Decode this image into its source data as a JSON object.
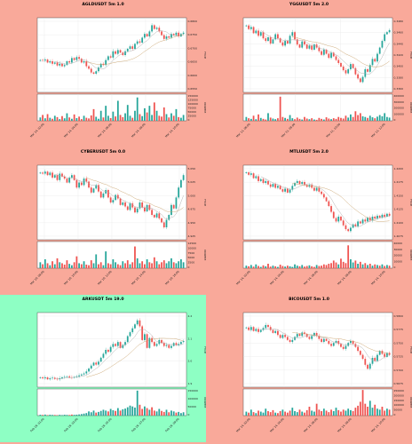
{
  "colors": {
    "background_default": "#f9a99a",
    "background_highlight": "#8effc4",
    "up": "#26a69a",
    "down": "#ef5350",
    "ma_fast": "#a9a9a9",
    "ma_slow": "#c8a26b",
    "plot_bg": "#ffffff"
  },
  "chart_data": [
    {
      "type": "candlestick",
      "title": "AGLDUSDT 5m 1.0",
      "ylabel": "Price",
      "volume_label": "Volume",
      "highlight": false,
      "price_ticks": [
        "0.6800",
        "0.6750",
        "0.6700",
        "0.6650",
        "0.6600",
        "0.6550"
      ],
      "ylim": [
        0.652,
        0.682
      ],
      "volume_ticks": [
        "150000",
        "125000",
        "100000",
        "75000",
        "50000",
        "25000",
        "0"
      ],
      "volume_max": 160000,
      "x_ticks": [
        "Mar 14, 02:00",
        "Mar 14, 04:00",
        "Mar 14, 06:00",
        "Mar 14, 08:00",
        "Mar 14, 10:00"
      ],
      "price_path": [
        0.665,
        0.6648,
        0.6652,
        0.664,
        0.6645,
        0.6635,
        0.664,
        0.6628,
        0.6635,
        0.6625,
        0.663,
        0.6645,
        0.664,
        0.6658,
        0.665,
        0.6662,
        0.6655,
        0.664,
        0.6645,
        0.6625,
        0.6615,
        0.66,
        0.6595,
        0.6605,
        0.662,
        0.6635,
        0.663,
        0.665,
        0.6665,
        0.666,
        0.6685,
        0.6675,
        0.669,
        0.668,
        0.667,
        0.6685,
        0.6695,
        0.6705,
        0.6695,
        0.6715,
        0.6725,
        0.672,
        0.674,
        0.6755,
        0.6745,
        0.6765,
        0.679,
        0.6775,
        0.678,
        0.6765,
        0.675,
        0.6735,
        0.6745,
        0.674,
        0.6755,
        0.675,
        0.676,
        0.6745,
        0.6755,
        0.676
      ],
      "volume": [
        20000,
        35000,
        15000,
        40000,
        18000,
        12000,
        30000,
        22000,
        10000,
        28000,
        15000,
        45000,
        20000,
        12000,
        38000,
        16000,
        25000,
        10000,
        30000,
        18000,
        14000,
        32000,
        70000,
        24000,
        12000,
        60000,
        20000,
        90000,
        30000,
        16000,
        55000,
        26000,
        120000,
        35000,
        22000,
        45000,
        95000,
        30000,
        18000,
        60000,
        140000,
        40000,
        28000,
        75000,
        50000,
        90000,
        35000,
        110000,
        60000,
        30000,
        25000,
        80000,
        40000,
        20000,
        45000,
        30000,
        70000,
        22000,
        18000,
        35000
      ]
    },
    {
      "type": "candlestick",
      "title": "YGGUSDT 5m 2.0",
      "ylabel": "Price",
      "volume_label": "Volume",
      "highlight": false,
      "price_ticks": [
        "0.3480",
        "0.3460",
        "0.3440",
        "0.3420",
        "0.3400",
        "0.3380",
        "0.3360"
      ],
      "ylim": [
        0.3345,
        0.349
      ],
      "volume_ticks": [
        "400000",
        "300000",
        "200000",
        "100000",
        "0"
      ],
      "volume_max": 420000,
      "x_ticks": [
        "Mar 11, 06:00",
        "Mar 11, 08:00",
        "Mar 11, 10:00",
        "Mar 11, 12:00"
      ],
      "price_path": [
        0.3475,
        0.3468,
        0.3472,
        0.346,
        0.3465,
        0.3455,
        0.3462,
        0.345,
        0.3445,
        0.3452,
        0.344,
        0.3448,
        0.3458,
        0.345,
        0.3442,
        0.3436,
        0.3445,
        0.344,
        0.3455,
        0.3462,
        0.3448,
        0.3438,
        0.3432,
        0.3444,
        0.3438,
        0.343,
        0.3436,
        0.3428,
        0.3438,
        0.3432,
        0.3425,
        0.3418,
        0.3428,
        0.342,
        0.3412,
        0.3422,
        0.3415,
        0.3408,
        0.3402,
        0.3395,
        0.3388,
        0.3382,
        0.339,
        0.34,
        0.3392,
        0.338,
        0.3372,
        0.3365,
        0.3375,
        0.339,
        0.3385,
        0.3398,
        0.341,
        0.3405,
        0.342,
        0.3432,
        0.3445,
        0.3458,
        0.3462,
        0.3466
      ],
      "volume": [
        60000,
        40000,
        30000,
        80000,
        25000,
        100000,
        45000,
        30000,
        20000,
        120000,
        50000,
        35000,
        25000,
        40000,
        380000,
        60000,
        45000,
        30000,
        90000,
        40000,
        25000,
        50000,
        30000,
        20000,
        60000,
        35000,
        25000,
        40000,
        20000,
        15000,
        45000,
        30000,
        20000,
        55000,
        35000,
        25000,
        40000,
        30000,
        60000,
        45000,
        35000,
        80000,
        50000,
        100000,
        60000,
        150000,
        90000,
        120000,
        70000,
        60000,
        45000,
        80000,
        55000,
        40000,
        65000,
        90000,
        70000,
        120000,
        60000,
        50000
      ]
    },
    {
      "type": "candlestick",
      "title": "CYBERUSDT 5m 0.0",
      "ylabel": "Price",
      "volume_label": "Volume",
      "highlight": false,
      "price_ticks": [
        "5.050",
        "5.025",
        "5.000",
        "4.975",
        "4.950",
        "4.925"
      ],
      "ylim": [
        4.915,
        5.065
      ],
      "volume_ticks": [
        "12500",
        "10000",
        "7500",
        "5000",
        "2500",
        "0"
      ],
      "volume_max": 13500,
      "x_ticks": [
        "Mar 10, 08:00",
        "Mar 10, 10:00",
        "Mar 10, 12:00",
        "Mar 10, 14:00",
        "Mar 10, 16:00"
      ],
      "price_path": [
        5.05,
        5.048,
        5.052,
        5.045,
        5.05,
        5.04,
        5.045,
        5.035,
        5.048,
        5.042,
        5.038,
        5.03,
        5.04,
        5.045,
        5.035,
        5.02,
        5.03,
        5.025,
        5.038,
        5.032,
        5.02,
        5.01,
        5.018,
        5.025,
        5.012,
        5.0,
        5.008,
        5.015,
        5.0,
        4.99,
        4.995,
        5.005,
        4.998,
        4.985,
        4.99,
        4.982,
        4.975,
        4.988,
        4.98,
        4.97,
        4.978,
        4.99,
        4.98,
        4.972,
        4.985,
        4.975,
        4.965,
        4.96,
        4.968,
        4.958,
        4.95,
        4.94,
        4.955,
        4.965,
        4.985,
        4.978,
        5.0,
        5.02,
        5.035,
        5.045
      ],
      "volume": [
        3000,
        2000,
        4500,
        2500,
        1500,
        3500,
        2000,
        5000,
        3000,
        2500,
        1800,
        4000,
        2200,
        1500,
        3000,
        6000,
        2500,
        2000,
        3500,
        1800,
        1500,
        4000,
        2500,
        7000,
        2000,
        3000,
        1500,
        8500,
        2500,
        2000,
        4500,
        3000,
        2000,
        1500,
        3500,
        2500,
        4000,
        2000,
        3000,
        11000,
        5000,
        2500,
        3500,
        2000,
        4500,
        3000,
        2500,
        5500,
        3500,
        2000,
        3000,
        4000,
        2500,
        3500,
        5000,
        3000,
        2500,
        3500,
        4500,
        3000
      ]
    },
    {
      "type": "candlestick",
      "title": "MTLUSDT 5m 2.0",
      "ylabel": "Price",
      "volume_label": "Volume",
      "highlight": false,
      "price_ticks": [
        "1.4200",
        "1.4175",
        "1.4150",
        "1.4125",
        "1.4100",
        "1.4075"
      ],
      "ylim": [
        1.406,
        1.4215
      ],
      "volume_ticks": [
        "40000",
        "30000",
        "20000",
        "10000",
        "0"
      ],
      "volume_max": 42000,
      "x_ticks": [
        "Mar 14, 02:00",
        "Mar 14, 04:00",
        "Mar 14, 06:00",
        "Mar 14, 08:00",
        "Mar 14, 10:00"
      ],
      "price_path": [
        1.42,
        1.4195,
        1.4198,
        1.4188,
        1.4192,
        1.4182,
        1.4186,
        1.4178,
        1.4182,
        1.4175,
        1.417,
        1.4176,
        1.4168,
        1.4172,
        1.4165,
        1.416,
        1.4166,
        1.4158,
        1.4164,
        1.4172,
        1.4178,
        1.4182,
        1.4176,
        1.418,
        1.4174,
        1.417,
        1.4174,
        1.4168,
        1.4162,
        1.4168,
        1.416,
        1.4155,
        1.4148,
        1.414,
        1.413,
        1.4118,
        1.4105,
        1.4098,
        1.4108,
        1.41,
        1.409,
        1.4082,
        1.4078,
        1.4085,
        1.4092,
        1.4088,
        1.4098,
        1.4094,
        1.4102,
        1.4098,
        1.4106,
        1.41,
        1.4108,
        1.4104,
        1.411,
        1.4106,
        1.4112,
        1.4108,
        1.4114,
        1.411
      ],
      "volume": [
        4000,
        3000,
        5000,
        2500,
        6000,
        3500,
        2000,
        4500,
        3000,
        7000,
        2500,
        4000,
        3000,
        2000,
        5500,
        3500,
        2500,
        4000,
        3000,
        2000,
        6000,
        4000,
        3000,
        5000,
        2500,
        3500,
        4500,
        3000,
        2000,
        5000,
        3500,
        4000,
        6000,
        5000,
        7000,
        8000,
        12000,
        9000,
        6000,
        15000,
        10000,
        8000,
        36000,
        14000,
        9000,
        12000,
        7000,
        10000,
        6000,
        8000,
        5000,
        7000,
        4000,
        6000,
        5000,
        4000,
        6000,
        3500,
        5000,
        4000
      ]
    },
    {
      "type": "candlestick",
      "title": "ARKUSDT 5m 19.0",
      "ylabel": "Price",
      "volume_label": "Volume",
      "highlight": true,
      "price_ticks": [
        "2.2",
        "2.1",
        "2.0",
        "1.9"
      ],
      "ylim": [
        1.86,
        2.24
      ],
      "volume_ticks": [
        "150000",
        "100000",
        "50000",
        "0"
      ],
      "volume_max": 160000,
      "x_ticks": [
        "Feb 29, 01:00",
        "Feb 29, 03:00",
        "Feb 29, 05:00",
        "Feb 29, 07:00",
        "Feb 29, 09:00"
      ],
      "price_path": [
        1.91,
        1.905,
        1.91,
        1.9,
        1.905,
        1.908,
        1.902,
        1.9,
        1.905,
        1.91,
        1.912,
        1.915,
        1.91,
        1.908,
        1.912,
        1.915,
        1.92,
        1.925,
        1.93,
        1.94,
        1.955,
        1.97,
        1.985,
        1.975,
        1.99,
        2.01,
        2.03,
        2.05,
        2.04,
        2.065,
        2.08,
        2.07,
        2.09,
        2.06,
        2.075,
        2.09,
        2.12,
        2.14,
        2.16,
        2.18,
        2.2,
        2.17,
        2.1,
        2.13,
        2.06,
        2.11,
        2.09,
        2.07,
        2.08,
        2.1,
        2.085,
        2.07,
        2.075,
        2.06,
        2.07,
        2.085,
        2.075,
        2.08,
        2.09,
        2.095
      ],
      "volume": [
        5000,
        4000,
        6000,
        3000,
        5000,
        4000,
        3500,
        2500,
        4500,
        3000,
        5000,
        4000,
        3500,
        6000,
        4500,
        5500,
        7000,
        9000,
        12000,
        15000,
        25000,
        20000,
        30000,
        18000,
        22000,
        28000,
        35000,
        30000,
        25000,
        40000,
        32000,
        28000,
        45000,
        30000,
        38000,
        42000,
        50000,
        60000,
        55000,
        48000,
        150000,
        65000,
        40000,
        55000,
        45000,
        35000,
        50000,
        30000,
        25000,
        40000,
        28000,
        22000,
        35000,
        20000,
        30000,
        25000,
        18000,
        22000,
        15000,
        20000
      ]
    },
    {
      "type": "candlestick",
      "title": "BICOUSDT 5m 1.0",
      "ylabel": "Price",
      "volume_label": "Volume",
      "highlight": false,
      "price_ticks": [
        "0.5800",
        "0.5775",
        "0.5750",
        "0.5725",
        "0.5700",
        "0.5675"
      ],
      "ylim": [
        0.5665,
        0.5815
      ],
      "volume_ticks": [
        "250000",
        "200000",
        "150000",
        "100000",
        "50000",
        "0"
      ],
      "volume_max": 270000,
      "x_ticks": [
        "Mar 14, 02:00",
        "Mar 14, 04:00",
        "Mar 14, 06:00",
        "Mar 14, 08:00",
        "Mar 14, 10:00"
      ],
      "price_path": [
        0.5785,
        0.578,
        0.5786,
        0.5778,
        0.5782,
        0.5776,
        0.578,
        0.5784,
        0.579,
        0.5786,
        0.578,
        0.5774,
        0.5778,
        0.577,
        0.5764,
        0.577,
        0.5766,
        0.576,
        0.5756,
        0.576,
        0.5766,
        0.5772,
        0.5768,
        0.5775,
        0.5772,
        0.5766,
        0.5762,
        0.5768,
        0.5774,
        0.5768,
        0.5762,
        0.5756,
        0.5762,
        0.5758,
        0.5752,
        0.5748,
        0.5754,
        0.5758,
        0.5752,
        0.5746,
        0.5742,
        0.5748,
        0.5754,
        0.5758,
        0.5752,
        0.5746,
        0.5738,
        0.573,
        0.5722,
        0.571,
        0.5702,
        0.5712,
        0.5724,
        0.5718,
        0.573,
        0.5738,
        0.5732,
        0.5726,
        0.5734,
        0.573
      ],
      "volume": [
        40000,
        30000,
        60000,
        35000,
        25000,
        50000,
        40000,
        30000,
        70000,
        45000,
        35000,
        55000,
        30000,
        25000,
        45000,
        60000,
        40000,
        30000,
        50000,
        80000,
        45000,
        35000,
        60000,
        40000,
        30000,
        55000,
        90000,
        50000,
        40000,
        120000,
        60000,
        45000,
        70000,
        50000,
        35000,
        60000,
        45000,
        80000,
        55000,
        40000,
        60000,
        50000,
        70000,
        55000,
        45000,
        80000,
        100000,
        140000,
        260000,
        120000,
        90000,
        150000,
        80000,
        110000,
        70000,
        60000,
        90000,
        50000,
        70000,
        60000
      ]
    }
  ]
}
